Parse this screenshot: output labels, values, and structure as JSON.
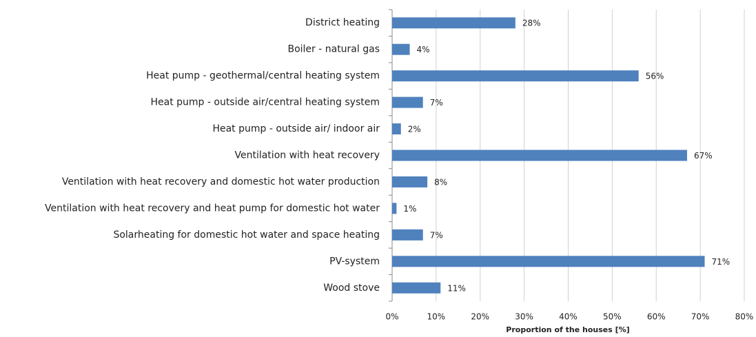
{
  "chart_data": {
    "type": "bar",
    "orientation": "horizontal",
    "x_label": "Proportion of the houses [%]",
    "categories": [
      "District heating",
      "Boiler - natural gas",
      "Heat pump - geothermal/central heating system",
      "Heat pump - outside air/central heating system",
      "Heat pump - outside air/ indoor air",
      "Ventilation with heat recovery",
      "Ventilation with heat recovery and domestic hot water production",
      "Ventilation with heat recovery and heat pump for domestic hot water",
      "Solarheating for domestic hot water and space heating",
      "PV-system",
      "Wood stove"
    ],
    "values": [
      28,
      4,
      56,
      7,
      2,
      67,
      8,
      1,
      7,
      71,
      11
    ],
    "value_labels": [
      "28%",
      "4%",
      "56%",
      "7%",
      "2%",
      "67%",
      "8%",
      "1%",
      "7%",
      "71%",
      "11%"
    ],
    "color": "#4f81bd",
    "xlim": [
      0,
      80
    ],
    "xticks": [
      {
        "value": 0,
        "label": "0%"
      },
      {
        "value": 10,
        "label": "10%"
      },
      {
        "value": 20,
        "label": "20%"
      },
      {
        "value": 30,
        "label": "30%"
      },
      {
        "value": 40,
        "label": "40%"
      },
      {
        "value": 50,
        "label": "50%"
      },
      {
        "value": 60,
        "label": "60%"
      },
      {
        "value": 70,
        "label": "70%"
      },
      {
        "value": 80,
        "label": "80%"
      }
    ],
    "grid": true
  }
}
